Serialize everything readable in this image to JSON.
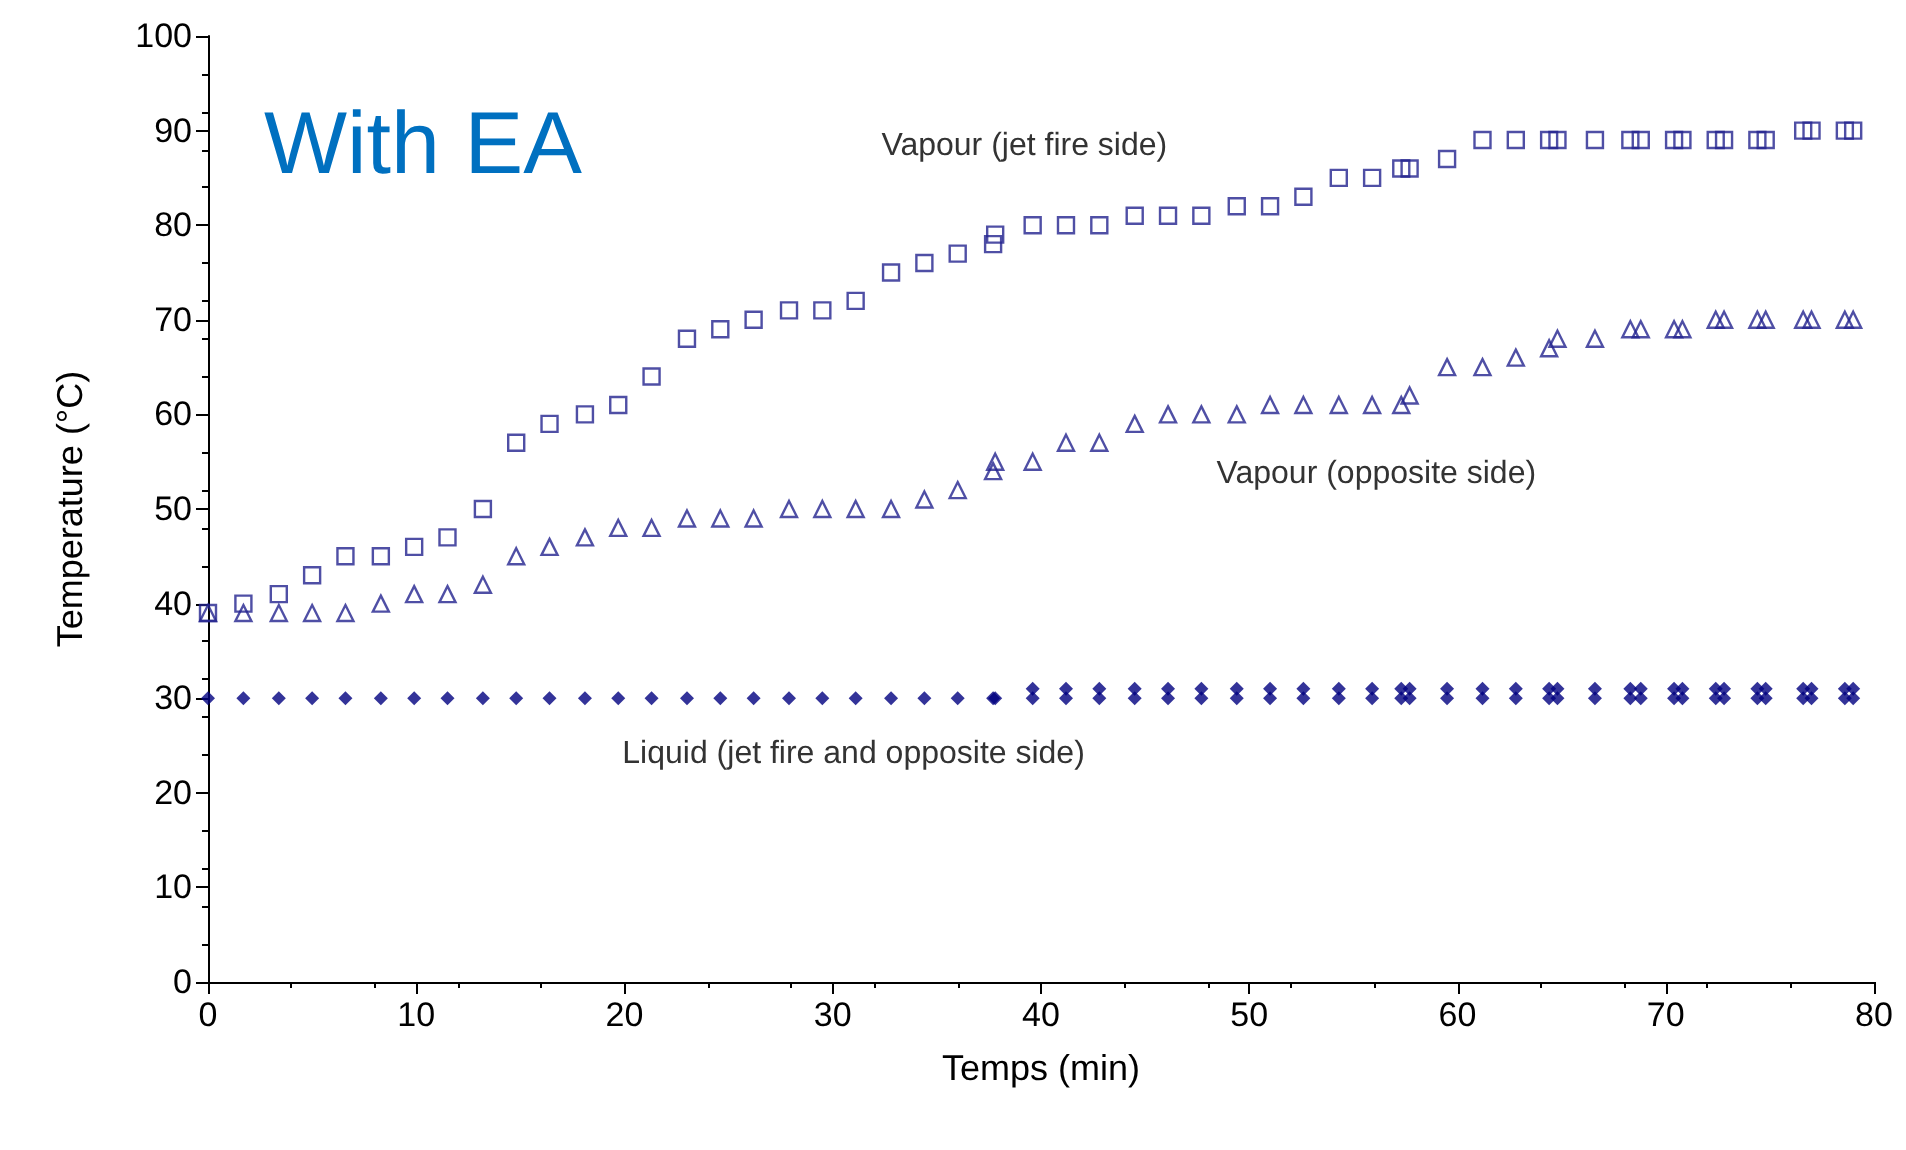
{
  "chart_data": {
    "type": "scatter",
    "title": "With EA",
    "xlabel": "Temps (min)",
    "ylabel": "Temperature (°C)",
    "xlim": [
      0,
      80
    ],
    "xticks": [
      0,
      10,
      20,
      30,
      40,
      50,
      60,
      70,
      80
    ],
    "ylim": [
      0,
      100
    ],
    "yticks": [
      0,
      10,
      20,
      30,
      40,
      50,
      60,
      70,
      80,
      90,
      100
    ],
    "grid": false,
    "series": [
      {
        "name": "Vapour (jet fire side)",
        "color": "#23238e",
        "marker": "square",
        "x": [
          0,
          1.7,
          3.4,
          5,
          6.6,
          8.3,
          9.9,
          11.5,
          13.2,
          14.8,
          16.4,
          18.1,
          19.7,
          21.3,
          23,
          24.6,
          26.2,
          27.9,
          29.5,
          31.1,
          32.8,
          34.4,
          36,
          37.7,
          37.8,
          39.6,
          41.2,
          42.8,
          44.5,
          46.1,
          47.7,
          49.4,
          51,
          52.6,
          54.3,
          55.9,
          57.3,
          57.7,
          59.5,
          61.2,
          62.8,
          64.4,
          64.8,
          66.6,
          68.3,
          68.8,
          70.4,
          70.8,
          72.4,
          72.8,
          74.4,
          74.8,
          76.6,
          77,
          78.6,
          79
        ],
        "values": [
          39,
          40,
          41,
          43,
          45,
          45,
          46,
          47,
          50,
          57,
          59,
          60,
          61,
          64,
          68,
          69,
          70,
          71,
          71,
          72,
          75,
          76,
          77,
          78,
          79,
          80,
          80,
          80,
          81,
          81,
          81,
          82,
          82,
          83,
          85,
          85,
          86,
          86,
          87,
          89,
          89,
          89,
          89,
          89,
          89,
          89,
          89,
          89,
          89,
          89,
          89,
          89,
          90,
          90,
          90,
          90
        ]
      },
      {
        "name": "Vapour (opposite side)",
        "color": "#23238e",
        "marker": "triangle",
        "x": [
          0,
          1.7,
          3.4,
          5,
          6.6,
          8.3,
          9.9,
          11.5,
          13.2,
          14.8,
          16.4,
          18.1,
          19.7,
          21.3,
          23,
          24.6,
          26.2,
          27.9,
          29.5,
          31.1,
          32.8,
          34.4,
          36,
          37.7,
          37.8,
          39.6,
          41.2,
          42.8,
          44.5,
          46.1,
          47.7,
          49.4,
          51,
          52.6,
          54.3,
          55.9,
          57.3,
          57.7,
          59.5,
          61.2,
          62.8,
          64.4,
          64.8,
          66.6,
          68.3,
          68.8,
          70.4,
          70.8,
          72.4,
          72.8,
          74.4,
          74.8,
          76.6,
          77,
          78.6,
          79
        ],
        "values": [
          39,
          39,
          39,
          39,
          39,
          40,
          41,
          41,
          42,
          45,
          46,
          47,
          48,
          48,
          49,
          49,
          49,
          50,
          50,
          50,
          50,
          51,
          52,
          54,
          55,
          55,
          57,
          57,
          59,
          60,
          60,
          60,
          61,
          61,
          61,
          61,
          61,
          62,
          65,
          65,
          66,
          67,
          68,
          68,
          69,
          69,
          69,
          69,
          70,
          70,
          70,
          70,
          70,
          70,
          70,
          70
        ]
      },
      {
        "name": "Liquid (jet fire and opposite side)",
        "color": "#000080",
        "marker": "diamond",
        "x": [
          0,
          1.7,
          3.4,
          5,
          6.6,
          8.3,
          9.9,
          11.5,
          13.2,
          14.8,
          16.4,
          18.1,
          19.7,
          21.3,
          23,
          24.6,
          26.2,
          27.9,
          29.5,
          31.1,
          32.8,
          34.4,
          36,
          37.7,
          37.8,
          39.6,
          39.6,
          41.2,
          41.2,
          42.8,
          42.8,
          44.5,
          44.5,
          46.1,
          46.1,
          47.7,
          47.7,
          49.4,
          49.4,
          51,
          51,
          52.6,
          52.6,
          54.3,
          54.3,
          55.9,
          55.9,
          57.3,
          57.3,
          57.7,
          57.7,
          59.5,
          59.5,
          61.2,
          61.2,
          62.8,
          62.8,
          64.4,
          64.4,
          64.8,
          64.8,
          66.6,
          66.6,
          68.3,
          68.3,
          68.8,
          68.8,
          70.4,
          70.4,
          70.8,
          70.8,
          72.4,
          72.4,
          72.8,
          72.8,
          74.4,
          74.4,
          74.8,
          74.8,
          76.6,
          76.6,
          77,
          77,
          78.6,
          78.6,
          79,
          79
        ],
        "values": [
          30,
          30,
          30,
          30,
          30,
          30,
          30,
          30,
          30,
          30,
          30,
          30,
          30,
          30,
          30,
          30,
          30,
          30,
          30,
          30,
          30,
          30,
          30,
          30,
          30,
          30,
          31,
          30,
          31,
          30,
          31,
          30,
          31,
          30,
          31,
          30,
          31,
          30,
          31,
          30,
          31,
          30,
          31,
          30,
          31,
          30,
          31,
          30,
          31,
          30,
          31,
          30,
          31,
          30,
          31,
          30,
          31,
          30,
          31,
          30,
          31,
          30,
          31,
          30,
          31,
          30,
          31,
          30,
          31,
          30,
          31,
          30,
          31,
          30,
          31,
          30,
          31,
          30,
          31,
          30,
          31,
          30,
          31,
          30,
          31,
          30,
          31
        ]
      }
    ]
  }
}
